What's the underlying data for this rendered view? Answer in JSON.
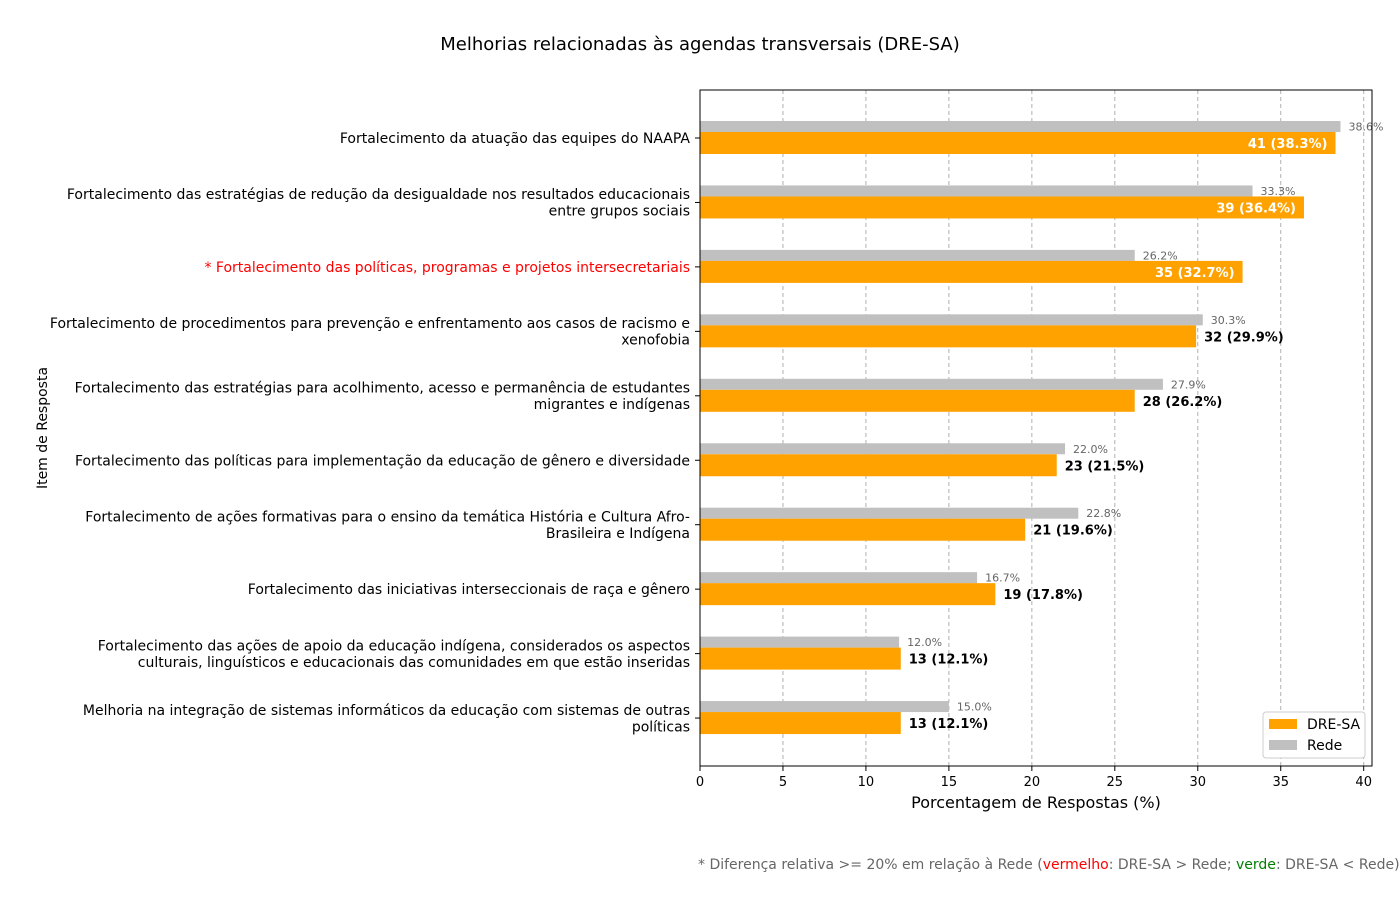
{
  "chart_data": {
    "type": "bar",
    "orientation": "horizontal",
    "title": "Melhorias relacionadas às agendas transversais (DRE-SA)",
    "xlabel": "Porcentagem de Respostas (%)",
    "ylabel": "Item de Resposta",
    "xlim": [
      0,
      40.5
    ],
    "xticks": [
      0,
      5,
      10,
      15,
      20,
      25,
      30,
      35,
      40
    ],
    "grid": "vertical dashed",
    "legend_position": "bottom-right",
    "colors": {
      "dre": "#ffa200",
      "rede": "#c0c0c0",
      "highlight_up": "#ff0000"
    },
    "series": [
      {
        "name": "DRE-SA"
      },
      {
        "name": "Rede"
      }
    ],
    "categories": [
      {
        "lines": [
          "Fortalecimento da atuação das equipes do NAAPA"
        ],
        "dre_value": 38.3,
        "dre_label": "41 (38.3%)",
        "rede_value": 38.6,
        "rede_label": "38.6%",
        "highlight": false
      },
      {
        "lines": [
          "Fortalecimento das estratégias de redução da desigualdade nos resultados educacionais",
          "entre grupos sociais"
        ],
        "dre_value": 36.4,
        "dre_label": "39 (36.4%)",
        "rede_value": 33.3,
        "rede_label": "33.3%",
        "highlight": false
      },
      {
        "lines": [
          "* Fortalecimento das políticas, programas e projetos intersecretariais"
        ],
        "dre_value": 32.7,
        "dre_label": "35 (32.7%)",
        "rede_value": 26.2,
        "rede_label": "26.2%",
        "highlight": true
      },
      {
        "lines": [
          "Fortalecimento de procedimentos para prevenção e enfrentamento aos casos de racismo e",
          "xenofobia"
        ],
        "dre_value": 29.9,
        "dre_label": "32 (29.9%)",
        "rede_value": 30.3,
        "rede_label": "30.3%",
        "highlight": false
      },
      {
        "lines": [
          "Fortalecimento das estratégias para acolhimento, acesso e permanência de estudantes",
          "migrantes e indígenas"
        ],
        "dre_value": 26.2,
        "dre_label": "28 (26.2%)",
        "rede_value": 27.9,
        "rede_label": "27.9%",
        "highlight": false
      },
      {
        "lines": [
          "Fortalecimento das políticas para implementação da educação de gênero e diversidade"
        ],
        "dre_value": 21.5,
        "dre_label": "23 (21.5%)",
        "rede_value": 22.0,
        "rede_label": "22.0%",
        "highlight": false
      },
      {
        "lines": [
          "Fortalecimento de ações formativas para o ensino da temática História e Cultura Afro-",
          "Brasileira e Indígena"
        ],
        "dre_value": 19.6,
        "dre_label": "21 (19.6%)",
        "rede_value": 22.8,
        "rede_label": "22.8%",
        "highlight": false
      },
      {
        "lines": [
          "Fortalecimento das iniciativas interseccionais de raça e gênero"
        ],
        "dre_value": 17.8,
        "dre_label": "19 (17.8%)",
        "rede_value": 16.7,
        "rede_label": "16.7%",
        "highlight": false
      },
      {
        "lines": [
          "Fortalecimento das ações de apoio da educação indígena, considerados os aspectos",
          "culturais, linguísticos e educacionais das comunidades em que estão inseridas"
        ],
        "dre_value": 12.1,
        "dre_label": "13 (12.1%)",
        "rede_value": 12.0,
        "rede_label": "12.0%",
        "highlight": false
      },
      {
        "lines": [
          "Melhoria na integração de sistemas informáticos da educação com sistemas de outras",
          "políticas"
        ],
        "dre_value": 12.1,
        "dre_label": "13 (12.1%)",
        "rede_value": 15.0,
        "rede_label": "15.0%",
        "highlight": false
      }
    ]
  },
  "footnote": {
    "prefix": "* Diferença relativa >= 20% em relação à Rede (",
    "red_word": "vermelho",
    "middle": ": DRE-SA > Rede; ",
    "green_word": "verde",
    "suffix": ": DRE-SA < Rede)"
  }
}
